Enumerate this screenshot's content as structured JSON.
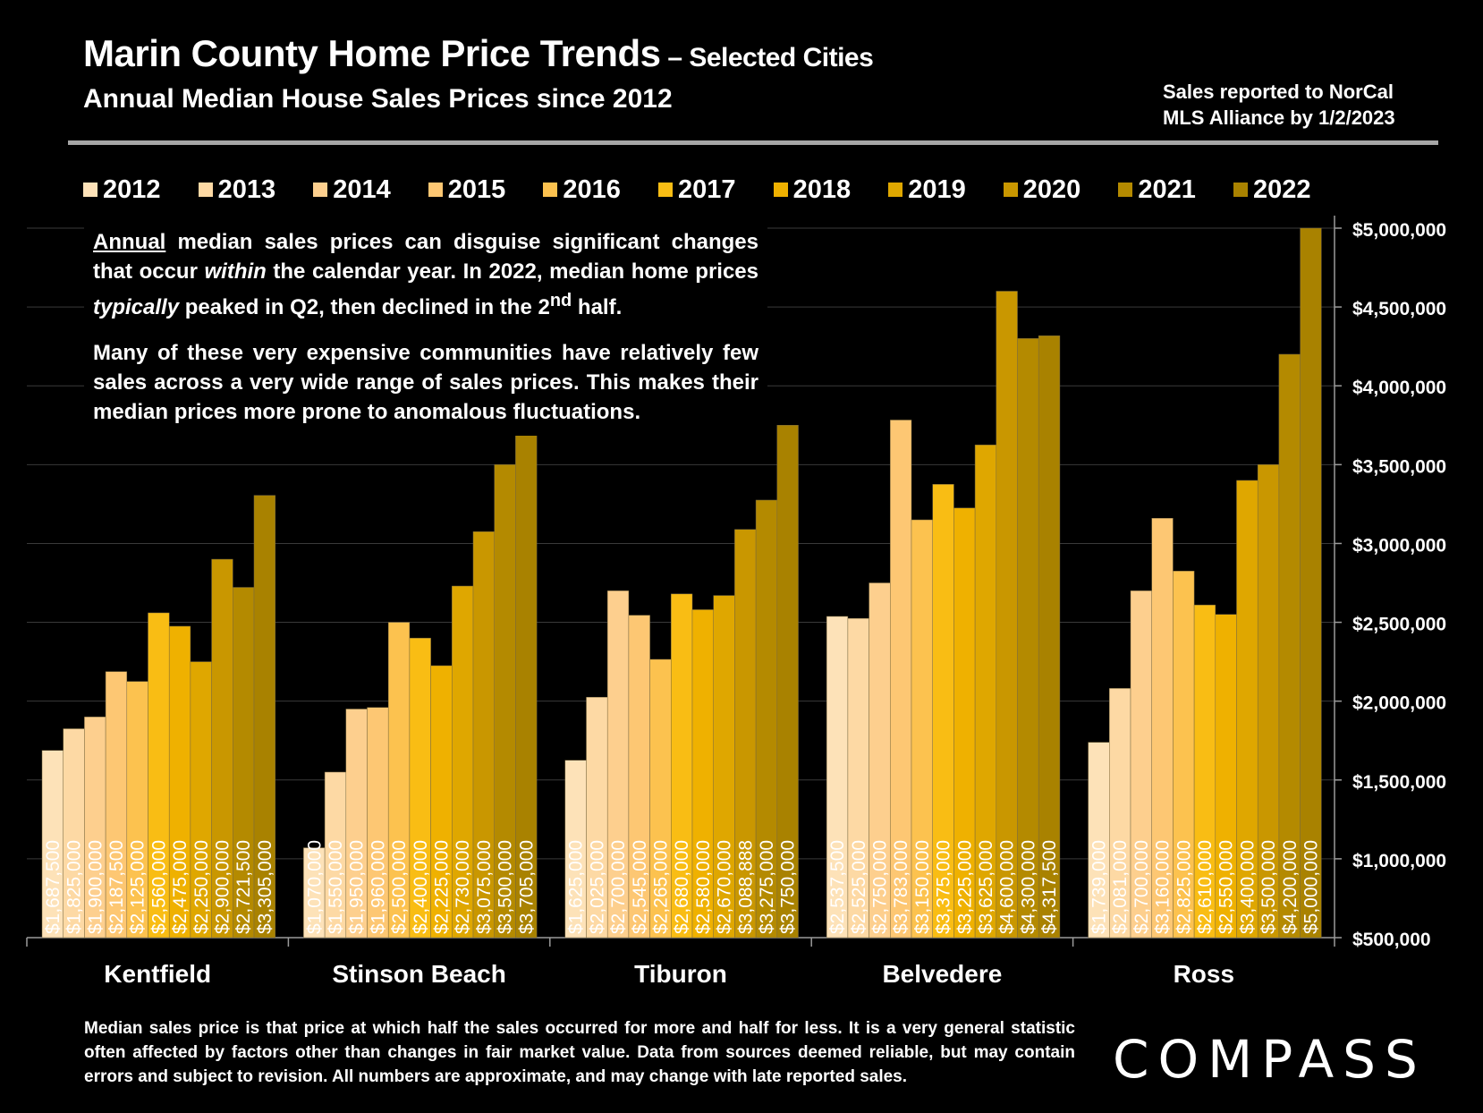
{
  "header": {
    "title_main": "Marin County Home Price Trends",
    "title_suffix": " – Selected Cities",
    "subtitle": "Annual Median House Sales Prices since 2012",
    "source_line1": "Sales reported to NorCal",
    "source_line2": "MLS Alliance by 1/2/2023"
  },
  "note": {
    "p1_underlined": "Annual",
    "p1_a": " median sales prices can disguise significant changes that occur ",
    "p1_italic1": "within",
    "p1_b": " the calendar year. In 2022, median home prices ",
    "p1_italic2": "typically",
    "p1_c": " peaked in Q2, then declined in the 2",
    "p1_sup": "nd",
    "p1_d": " half.",
    "p2": "Many of these very expensive communities have relatively few sales across a very wide range of sales prices. This makes their median prices more prone to anomalous fluctuations."
  },
  "footer": {
    "text": "Median sales price is that price at which half the sales occurred for more and half for less. It is a very general statistic often affected by factors other than changes in fair market value. Data from sources deemed reliable, but may contain errors and subject to revision. All numbers are approximate, and may change with late reported sales."
  },
  "logo": {
    "text": "COMPASS"
  },
  "colors": [
    "#fde2b8",
    "#fdd9a4",
    "#fdcf8e",
    "#fdc773",
    "#fcc24f",
    "#f9bd14",
    "#efb100",
    "#dfa700",
    "#c99700",
    "#b48a00",
    "#a98200"
  ],
  "chart_data": {
    "type": "bar",
    "title": "Marin County Home Price Trends – Selected Cities",
    "subtitle": "Annual Median House Sales Prices since 2012",
    "categories": [
      "Kentfield",
      "Stinson Beach",
      "Tiburon",
      "Belvedere",
      "Ross"
    ],
    "ylim": [
      500000,
      5000000
    ],
    "y_ticks": [
      500000,
      1000000,
      1500000,
      2000000,
      2500000,
      3000000,
      3500000,
      4000000,
      4500000,
      5000000
    ],
    "y_tick_labels": [
      "$500,000",
      "$1,000,000",
      "$1,500,000",
      "$2,000,000",
      "$2,500,000",
      "$3,000,000",
      "$3,500,000",
      "$4,000,000",
      "$4,500,000",
      "$5,000,000"
    ],
    "y_axis_position": "right",
    "grid": true,
    "legend_position": "top",
    "series": [
      {
        "name": "2012",
        "values": [
          1687500,
          1070000,
          1625000,
          2537500,
          1739000
        ],
        "labels": [
          "$1,687,500",
          "$1,070,000",
          "$1,625,000",
          "$2,537,500",
          "$1,739,000"
        ]
      },
      {
        "name": "2013",
        "values": [
          1825000,
          1550000,
          2025000,
          2525000,
          2081000
        ],
        "labels": [
          "$1,825,000",
          "$1,550,000",
          "$2,025,000",
          "$2,525,000",
          "$2,081,000"
        ]
      },
      {
        "name": "2014",
        "values": [
          1900000,
          1950000,
          2700000,
          2750000,
          2700000
        ],
        "labels": [
          "$1,900,000",
          "$1,950,000",
          "$2,700,000",
          "$2,750,000",
          "$2,700,000"
        ]
      },
      {
        "name": "2015",
        "values": [
          2187500,
          1960000,
          2545000,
          3783000,
          3160000
        ],
        "labels": [
          "$2,187,500",
          "$1,960,000",
          "$2,545,000",
          "$3,783,000",
          "$3,160,000"
        ]
      },
      {
        "name": "2016",
        "values": [
          2125000,
          2500000,
          2265000,
          3150000,
          2825000
        ],
        "labels": [
          "$2,125,000",
          "$2,500,000",
          "$2,265,000",
          "$3,150,000",
          "$2,825,000"
        ]
      },
      {
        "name": "2017",
        "values": [
          2560000,
          2400000,
          2680000,
          3375000,
          2610000
        ],
        "labels": [
          "$2,560,000",
          "$2,400,000",
          "$2,680,000",
          "$3,375,000",
          "$2,610,000"
        ]
      },
      {
        "name": "2018",
        "values": [
          2475000,
          2225000,
          2580000,
          3225000,
          2550000
        ],
        "labels": [
          "$2,475,000",
          "$2,225,000",
          "$2,580,000",
          "$3,225,000",
          "$2,550,000"
        ]
      },
      {
        "name": "2019",
        "values": [
          2250000,
          2730000,
          2670000,
          3625000,
          3400000
        ],
        "labels": [
          "$2,250,000",
          "$2,730,000",
          "$2,670,000",
          "$3,625,000",
          "$3,400,000"
        ]
      },
      {
        "name": "2020",
        "values": [
          2900000,
          3075000,
          3088888,
          4600000,
          3500000
        ],
        "labels": [
          "$2,900,000",
          "$3,075,000",
          "$3,088,888",
          "$4,600,000",
          "$3,500,000"
        ]
      },
      {
        "name": "2021",
        "values": [
          2721500,
          3500000,
          3275000,
          4300000,
          4200000
        ],
        "labels": [
          "$2,721,500",
          "$3,500,000",
          "$3,275,000",
          "$4,300,000",
          "$4,200,000"
        ]
      },
      {
        "name": "2022",
        "values": [
          3305000,
          3705000,
          3750000,
          4317500,
          5000000
        ],
        "labels": [
          "$3,305,000",
          "$3,705,000",
          "$3,750,000",
          "$4,317,500",
          "$5,000,000"
        ]
      }
    ]
  }
}
